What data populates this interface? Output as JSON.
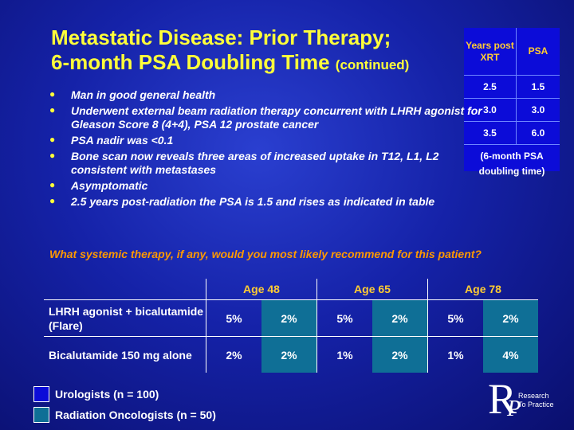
{
  "title": {
    "line1": "Metastatic Disease: Prior Therapy;",
    "line2": "6-month PSA Doubling Time",
    "continued": "(continued)"
  },
  "psa_table": {
    "headers": [
      "Years post XRT",
      "PSA"
    ],
    "rows": [
      [
        "2.5",
        "1.5"
      ],
      [
        "3.0",
        "3.0"
      ],
      [
        "3.5",
        "6.0"
      ]
    ],
    "footer_line1": "(6-month PSA",
    "footer_line2": "doubling time)"
  },
  "bullets": [
    "Man in good general health",
    "Underwent external beam radiation therapy concurrent with LHRH agonist for Gleason Score 8 (4+4), PSA 12 prostate cancer",
    "PSA nadir was <0.1",
    "Bone scan now reveals three areas of increased uptake in T12, L1, L2 consistent with metastases",
    "Asymptomatic",
    "2.5 years post-radiation the PSA is 1.5 and rises as indicated in table"
  ],
  "question": "What systemic therapy, if any, would you most likely recommend for this patient?",
  "results": {
    "age_groups": [
      "Age 48",
      "Age 65",
      "Age 78"
    ],
    "rows": [
      {
        "label": "LHRH agonist + bicalutamide (Flare)",
        "values": [
          "5%",
          "2%",
          "5%",
          "2%",
          "5%",
          "2%"
        ]
      },
      {
        "label": "Bicalutamide 150 mg alone",
        "values": [
          "2%",
          "2%",
          "1%",
          "2%",
          "1%",
          "4%"
        ]
      }
    ]
  },
  "legend": {
    "urologists": "Urologists  (n = 100)",
    "radiation_oncologists": "Radiation Oncologists  (n = 50)",
    "colors": {
      "urologists": "#0c0cd8",
      "radiation_oncologists": "#0f6f96"
    }
  },
  "logo": {
    "letters": "R",
    "sub_letter": "P",
    "text_line1": "Research",
    "text_line2": "To Practice"
  }
}
